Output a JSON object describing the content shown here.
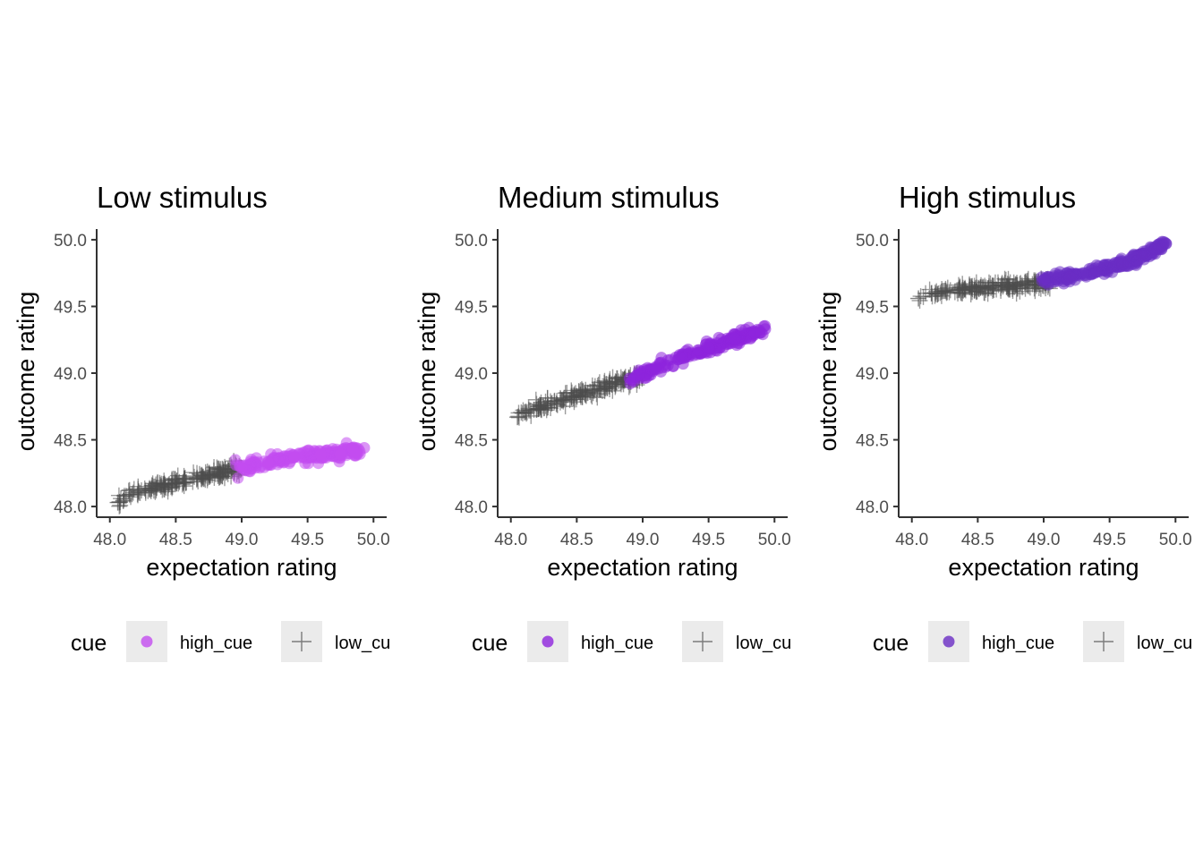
{
  "colors": {
    "low_cue": "#4d4d4d",
    "text": "#000000",
    "tick_text": "#4d4d4d",
    "axis": "#333333",
    "legend_key_bg": "#ebebeb",
    "background": "#ffffff"
  },
  "chart_data": [
    {
      "type": "scatter",
      "title": "Low stimulus",
      "xlabel": "expectation rating",
      "ylabel": "outcome rating",
      "xlim": [
        47.9,
        50.1
      ],
      "ylim": [
        47.92,
        50.08
      ],
      "x_ticks": [
        "48.0",
        "48.5",
        "49.0",
        "49.5",
        "50.0"
      ],
      "y_ticks": [
        "48.0",
        "48.5",
        "49.0",
        "49.5",
        "50.0"
      ],
      "grid": false,
      "legend": {
        "title": "cue",
        "position": "bottom",
        "entries": [
          {
            "label": "high_cue",
            "shape": "circle",
            "color": "#c34cf0"
          },
          {
            "label": "low_cu",
            "shape": "cross",
            "color": "#4d4d4d"
          }
        ]
      },
      "series": [
        {
          "name": "high_cue",
          "shape": "circle",
          "color": "#c34cf0",
          "x_range": [
            48.95,
            49.92
          ],
          "points": [
            [
              49.0,
              48.29
            ],
            [
              49.2,
              48.33
            ],
            [
              49.4,
              48.37
            ],
            [
              49.6,
              48.39
            ],
            [
              49.75,
              48.39
            ],
            [
              49.86,
              48.4
            ],
            [
              49.93,
              48.44
            ],
            [
              49.84,
              48.44
            ]
          ]
        },
        {
          "name": "low_cu",
          "shape": "cross",
          "color": "#4d4d4d",
          "x_range": [
            48.06,
            49.0
          ],
          "points": [
            [
              48.06,
              48.03
            ],
            [
              48.15,
              48.09
            ],
            [
              48.3,
              48.13
            ],
            [
              48.5,
              48.18
            ],
            [
              48.7,
              48.23
            ],
            [
              48.9,
              48.27
            ],
            [
              49.0,
              48.29
            ]
          ]
        }
      ]
    },
    {
      "type": "scatter",
      "title": "Medium stimulus",
      "xlabel": "expectation rating",
      "ylabel": "outcome rating",
      "xlim": [
        47.9,
        50.1
      ],
      "ylim": [
        47.92,
        50.08
      ],
      "x_ticks": [
        "48.0",
        "48.5",
        "49.0",
        "49.5",
        "50.0"
      ],
      "y_ticks": [
        "48.0",
        "48.5",
        "49.0",
        "49.5",
        "50.0"
      ],
      "grid": false,
      "legend": {
        "title": "cue",
        "position": "bottom",
        "entries": [
          {
            "label": "high_cue",
            "shape": "circle",
            "color": "#8e24dd"
          },
          {
            "label": "low_cu",
            "shape": "cross",
            "color": "#4d4d4d"
          }
        ]
      },
      "series": [
        {
          "name": "high_cue",
          "shape": "circle",
          "color": "#8e24dd",
          "x_range": [
            48.9,
            49.93
          ],
          "points": [
            [
              48.9,
              48.96
            ],
            [
              49.1,
              49.03
            ],
            [
              49.3,
              49.11
            ],
            [
              49.5,
              49.19
            ],
            [
              49.7,
              49.26
            ],
            [
              49.85,
              49.3
            ],
            [
              49.93,
              49.33
            ]
          ]
        },
        {
          "name": "low_cu",
          "shape": "cross",
          "color": "#4d4d4d",
          "x_range": [
            48.05,
            49.0
          ],
          "points": [
            [
              48.05,
              48.67
            ],
            [
              48.15,
              48.72
            ],
            [
              48.4,
              48.8
            ],
            [
              48.6,
              48.86
            ],
            [
              48.8,
              48.93
            ],
            [
              49.0,
              48.98
            ]
          ]
        }
      ]
    },
    {
      "type": "scatter",
      "title": "High stimulus",
      "xlabel": "expectation rating",
      "ylabel": "outcome rating",
      "xlim": [
        47.9,
        50.1
      ],
      "ylim": [
        47.92,
        50.08
      ],
      "x_ticks": [
        "48.0",
        "48.5",
        "49.0",
        "49.5",
        "50.0"
      ],
      "y_ticks": [
        "48.0",
        "48.5",
        "49.0",
        "49.5",
        "50.0"
      ],
      "grid": false,
      "legend": {
        "title": "cue",
        "position": "bottom",
        "entries": [
          {
            "label": "high_cue",
            "shape": "circle",
            "color": "#6a2dc4"
          },
          {
            "label": "low_cu",
            "shape": "cross",
            "color": "#4d4d4d"
          }
        ]
      },
      "series": [
        {
          "name": "high_cue",
          "shape": "circle",
          "color": "#6a2dc4",
          "x_range": [
            48.98,
            49.93
          ],
          "points": [
            [
              49.0,
              49.7
            ],
            [
              49.2,
              49.72
            ],
            [
              49.4,
              49.76
            ],
            [
              49.6,
              49.82
            ],
            [
              49.75,
              49.87
            ],
            [
              49.85,
              49.93
            ],
            [
              49.93,
              49.97
            ]
          ]
        },
        {
          "name": "low_cu",
          "shape": "cross",
          "color": "#4d4d4d",
          "x_range": [
            48.05,
            49.05
          ],
          "points": [
            [
              48.05,
              49.56
            ],
            [
              48.15,
              49.6
            ],
            [
              48.4,
              49.63
            ],
            [
              48.6,
              49.64
            ],
            [
              48.8,
              49.66
            ],
            [
              49.0,
              49.68
            ]
          ]
        }
      ]
    }
  ]
}
